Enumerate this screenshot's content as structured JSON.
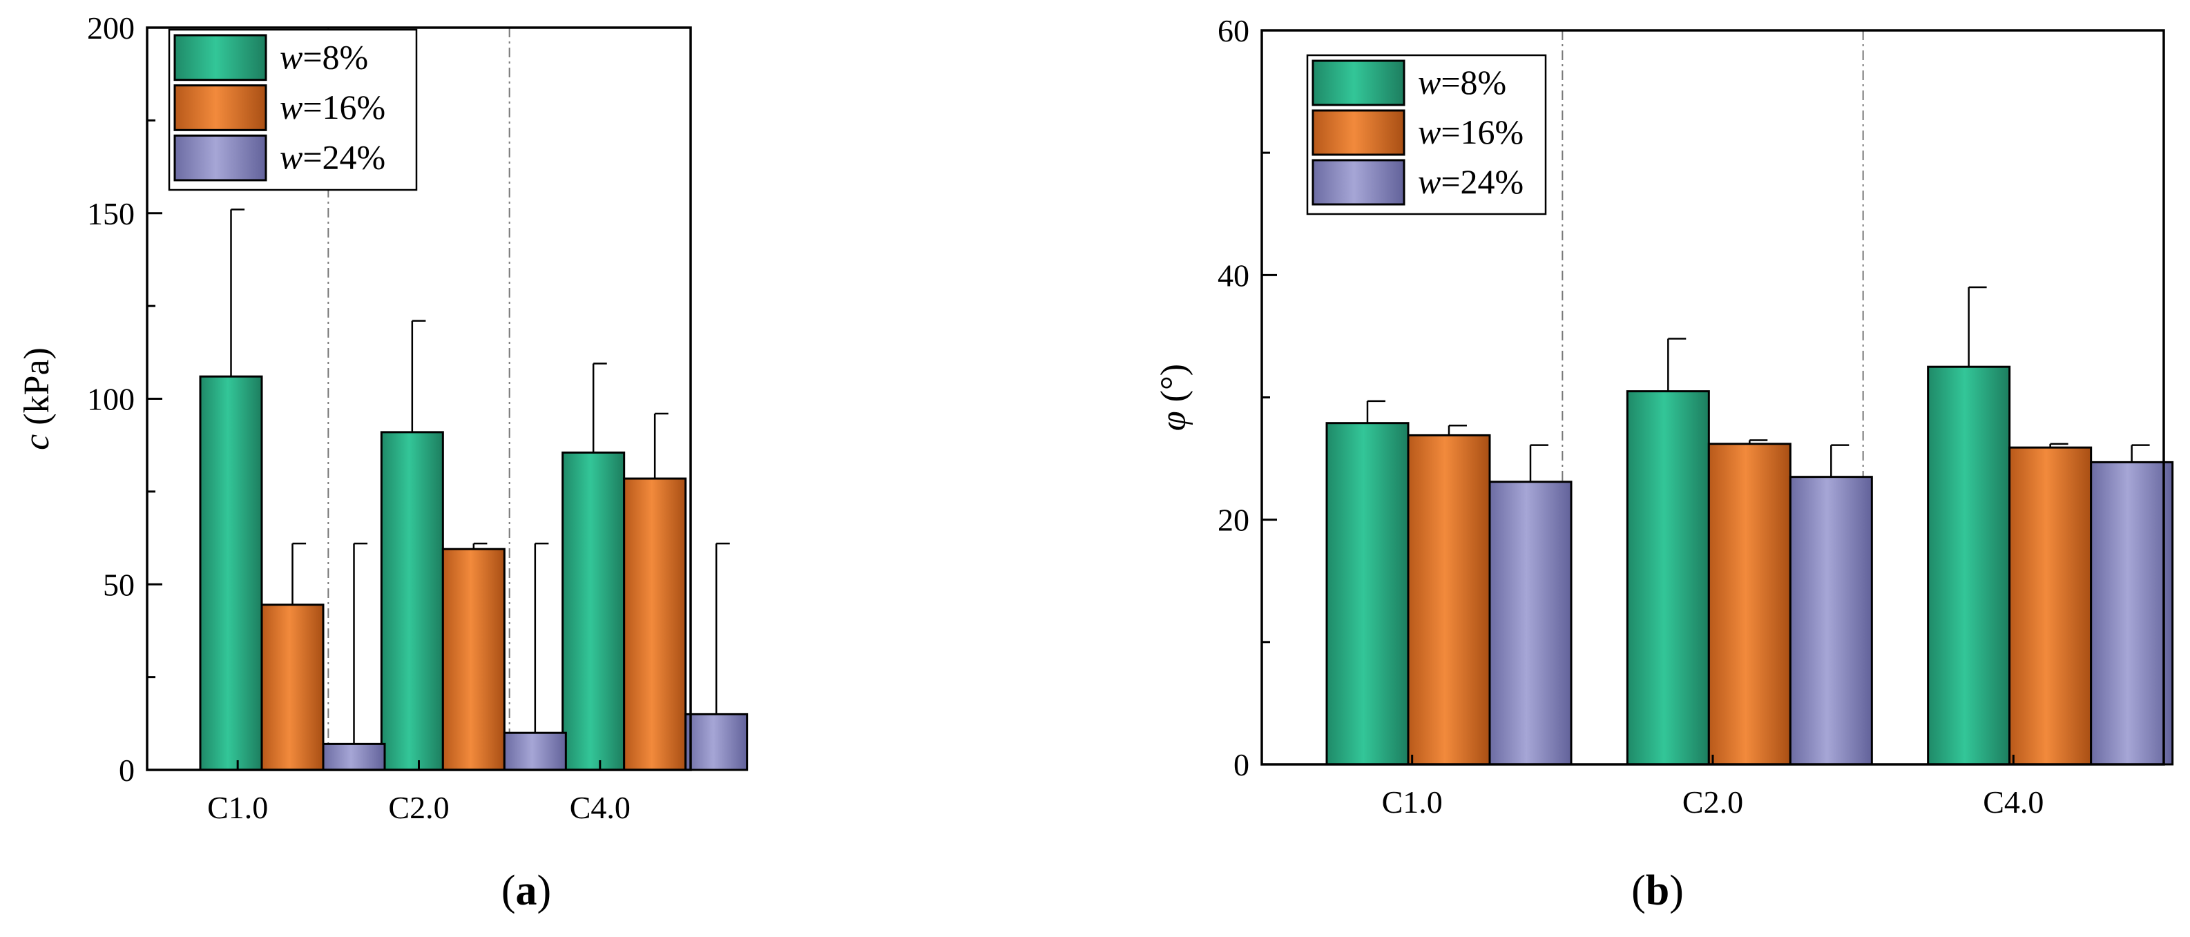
{
  "chart_data": [
    {
      "type": "bar",
      "panel": "(a)",
      "panel_letter": "a",
      "ylabel_symbol": "c",
      "ylabel_unit": " (kPa)",
      "ylim": [
        0,
        200
      ],
      "yticks": [
        0,
        50,
        100,
        150,
        200
      ],
      "ytick_labels": [
        "0",
        "50",
        "100",
        "150",
        "200"
      ],
      "categories": [
        "C1.0",
        "C2.0",
        "C4.0"
      ],
      "series": [
        {
          "name": "w=8%",
          "legend_symbol": "w",
          "legend_rest": "=8%",
          "color": "#33c698",
          "values": [
            106,
            91,
            85.5
          ],
          "errors": [
            45,
            30,
            24
          ]
        },
        {
          "name": "w=16%",
          "legend_symbol": "w",
          "legend_rest": "=16%",
          "color": "#f28a3c",
          "values": [
            44.5,
            59.5,
            78.5
          ],
          "errors": [
            16.5,
            1.5,
            17.5
          ]
        },
        {
          "name": "w=24%",
          "legend_symbol": "w",
          "legend_rest": "=24%",
          "color": "#9b9bcb",
          "values": [
            7,
            10,
            15
          ],
          "errors": [
            54,
            51,
            46
          ]
        }
      ],
      "legend_position": "top-left",
      "grid": false
    },
    {
      "type": "bar",
      "panel": "(b)",
      "panel_letter": "b",
      "ylabel_symbol": "φ",
      "ylabel_unit": " (°)",
      "ylim": [
        0,
        60
      ],
      "yticks": [
        0,
        20,
        40,
        60
      ],
      "ytick_labels": [
        "0",
        "20",
        "40",
        "60"
      ],
      "categories": [
        "C1.0",
        "C2.0",
        "C4.0"
      ],
      "series": [
        {
          "name": "w=8%",
          "legend_symbol": "w",
          "legend_rest": "=8%",
          "color": "#33c698",
          "values": [
            27.9,
            30.5,
            32.5
          ],
          "errors": [
            1.8,
            4.3,
            6.5
          ]
        },
        {
          "name": "w=16%",
          "legend_symbol": "w",
          "legend_rest": "=16%",
          "color": "#f28a3c",
          "values": [
            26.9,
            26.2,
            25.9
          ],
          "errors": [
            0.8,
            0.3,
            0.3
          ]
        },
        {
          "name": "w=24%",
          "legend_symbol": "w",
          "legend_rest": "=24%",
          "color": "#9b9bcb",
          "values": [
            23.1,
            23.5,
            24.7
          ],
          "errors": [
            3.0,
            2.6,
            1.4
          ]
        }
      ],
      "legend_position": "top-left",
      "grid": false
    }
  ]
}
